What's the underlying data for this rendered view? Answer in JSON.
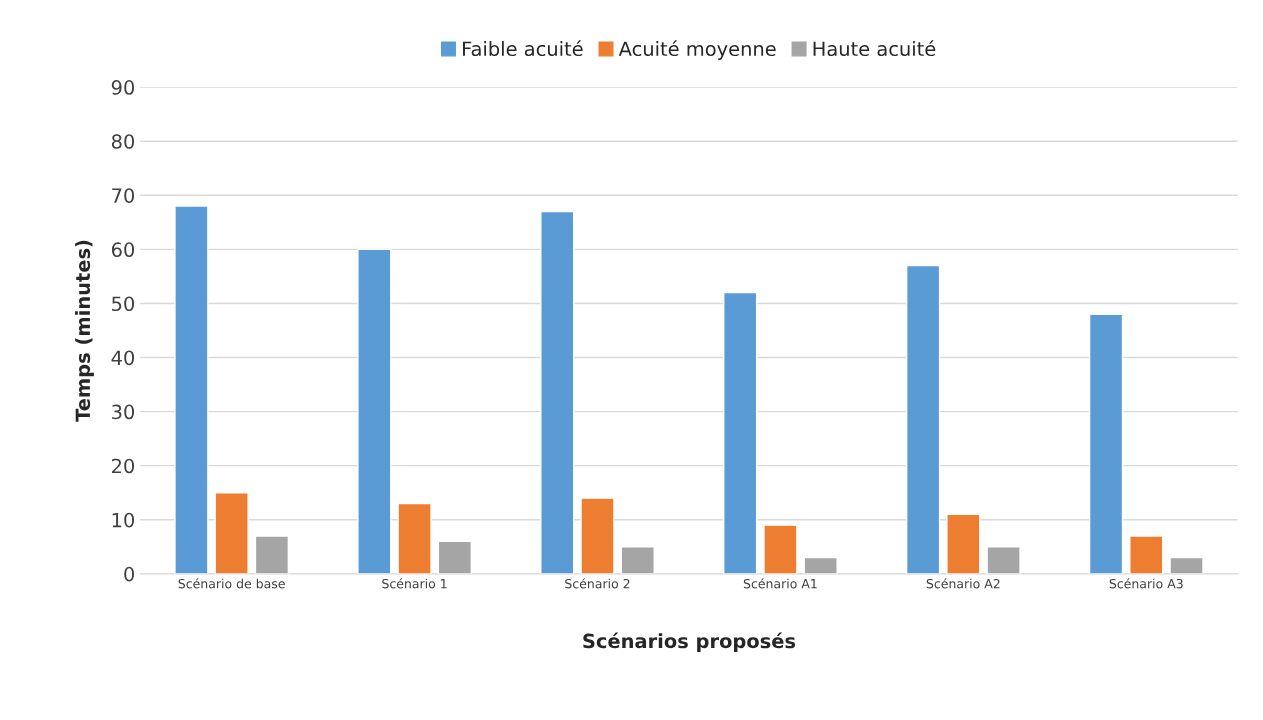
{
  "chart_data": {
    "type": "bar",
    "xlabel": "Scénarios proposés",
    "ylabel": "Temps (minutes)",
    "categories": [
      "Scénario de base",
      "Scénario 1",
      "Scénario 2",
      "Scénario A1",
      "Scénario A2",
      "Scénario A3"
    ],
    "series": [
      {
        "name": "Faible acuité",
        "color": "#5b9bd5",
        "values": [
          68,
          60,
          67,
          52,
          57,
          48
        ]
      },
      {
        "name": "Acuité moyenne",
        "color": "#ed7d31",
        "values": [
          15,
          13,
          14,
          9,
          11,
          7
        ]
      },
      {
        "name": "Haute acuité",
        "color": "#a5a5a5",
        "values": [
          7,
          6,
          5,
          3,
          5,
          3
        ]
      }
    ],
    "ylim": [
      0,
      90
    ],
    "yticks": [
      0,
      10,
      20,
      30,
      40,
      50,
      60,
      70,
      80,
      90
    ],
    "grid": "y",
    "legend": "top"
  }
}
